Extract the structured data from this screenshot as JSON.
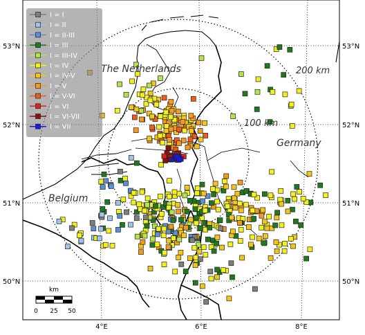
{
  "map": {
    "lat_labels": [
      "53°N",
      "52°N",
      "51°N",
      "50°N"
    ],
    "lon_labels": [
      "4°E",
      "6°E",
      "8°E"
    ],
    "countries": [
      "The Netherlands",
      "Germany",
      "Belgium"
    ],
    "rings": [
      "200 km",
      "100 km"
    ],
    "scale": {
      "unit": "km",
      "ticks": [
        "0",
        "25",
        "50"
      ]
    },
    "legend": [
      {
        "label": "I = I",
        "color": "#7f7f7f"
      },
      {
        "label": "I = II",
        "color": "#9fc5e8"
      },
      {
        "label": "I = II-III",
        "color": "#5b8fd6"
      },
      {
        "label": "I = III",
        "color": "#1f7a1f"
      },
      {
        "label": "I = III-IV",
        "color": "#b6e34a"
      },
      {
        "label": "I = IV",
        "color": "#f2f21a"
      },
      {
        "label": "I = IV-V",
        "color": "#f5c518"
      },
      {
        "label": "I = V",
        "color": "#f59a1a"
      },
      {
        "label": "I = V-VI",
        "color": "#f05a1a"
      },
      {
        "label": "I = VI",
        "color": "#e02020"
      },
      {
        "label": "I = VI-VII",
        "color": "#8b1010"
      },
      {
        "label": "I = VII",
        "color": "#1a1ae0"
      }
    ]
  }
}
